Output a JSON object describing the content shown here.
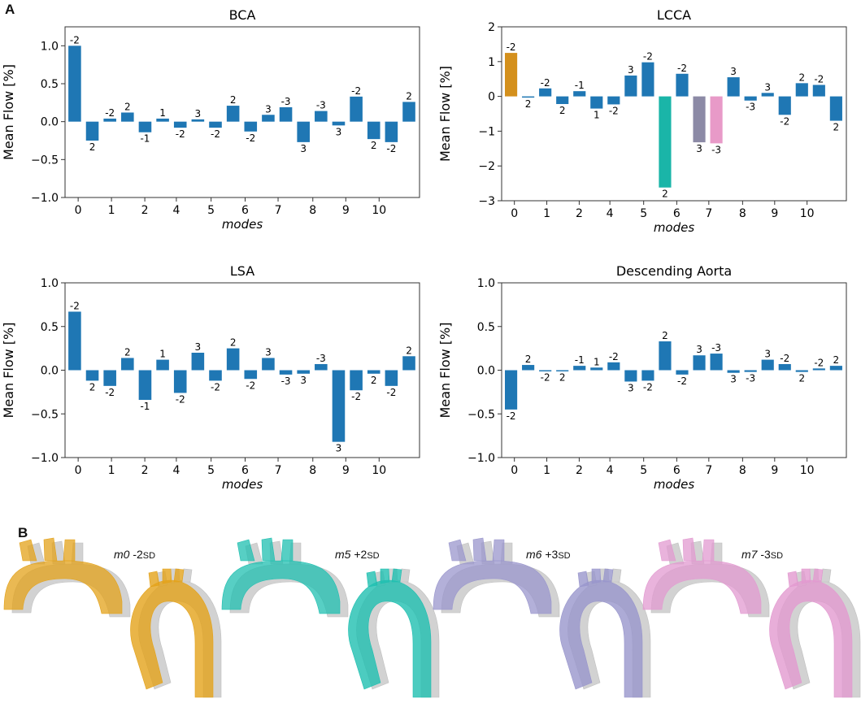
{
  "panel_a_letter": "A",
  "panel_b_letter": "B",
  "chart_data": [
    {
      "type": "bar",
      "title": "BCA",
      "xlabel": "modes",
      "ylabel": "Mean Flow [%]",
      "ylim": [
        -1.0,
        1.25
      ],
      "yticks": [
        -1.0,
        -0.5,
        0.0,
        0.5,
        1.0
      ],
      "ytick_labels": [
        "−1.0",
        "−0.5",
        "0.0",
        "0.5",
        "1.0"
      ],
      "xticks": [
        "0",
        "1",
        "2",
        "4",
        "5",
        "6",
        "7",
        "8",
        "9",
        "10"
      ],
      "values": [
        1.0,
        -0.25,
        0.04,
        0.12,
        -0.14,
        0.04,
        -0.08,
        0.03,
        -0.08,
        0.21,
        -0.13,
        0.09,
        0.19,
        -0.27,
        0.14,
        -0.05,
        0.33,
        -0.23,
        -0.27,
        0.26
      ],
      "labels": [
        "-2",
        "2",
        "-2",
        "2",
        "-1",
        "1",
        "-2",
        "3",
        "-2",
        "2",
        "-2",
        "3",
        "-3",
        "3",
        "-3",
        "3",
        "-2",
        "2",
        "-2",
        "2"
      ],
      "colors": [
        "#1f77b4"
      ]
    },
    {
      "type": "bar",
      "title": "LCCA",
      "xlabel": "modes",
      "ylabel": "Mean Flow [%]",
      "ylim": [
        -3,
        2
      ],
      "yticks": [
        -3,
        -2,
        -1,
        0,
        1,
        2
      ],
      "ytick_labels": [
        "−3",
        "−2",
        "−1",
        "0",
        "1",
        "2"
      ],
      "xticks": [
        "0",
        "1",
        "2",
        "4",
        "5",
        "6",
        "7",
        "8",
        "9",
        "10"
      ],
      "values": [
        1.25,
        -0.03,
        0.23,
        -0.22,
        0.15,
        -0.35,
        -0.23,
        0.6,
        0.98,
        -2.62,
        0.65,
        -1.32,
        -1.35,
        0.55,
        -0.12,
        0.1,
        -0.53,
        0.38,
        0.33,
        -0.7
      ],
      "labels": [
        "-2",
        "2",
        "-2",
        "2",
        "-1",
        "1",
        "-2",
        "3",
        "-2",
        "2",
        "-2",
        "3",
        "-3",
        "3",
        "-3",
        "3",
        "-2",
        "2",
        "-2",
        "2"
      ],
      "highlight": [
        {
          "index": 0,
          "color": "#d4901c"
        },
        {
          "index": 9,
          "color": "#1ab5a8"
        },
        {
          "index": 11,
          "color": "#8c8aa6"
        },
        {
          "index": 12,
          "color": "#e89ac8"
        }
      ],
      "colors": [
        "#1f77b4"
      ]
    },
    {
      "type": "bar",
      "title": "LSA",
      "xlabel": "modes",
      "ylabel": "Mean Flow [%]",
      "ylim": [
        -1.0,
        1.0
      ],
      "yticks": [
        -1.0,
        -0.5,
        0.0,
        0.5,
        1.0
      ],
      "ytick_labels": [
        "−1.0",
        "−0.5",
        "0.0",
        "0.5",
        "1.0"
      ],
      "xticks": [
        "0",
        "1",
        "2",
        "4",
        "5",
        "6",
        "7",
        "8",
        "9",
        "10"
      ],
      "values": [
        0.67,
        -0.12,
        -0.18,
        0.14,
        -0.34,
        0.12,
        -0.26,
        0.2,
        -0.12,
        0.25,
        -0.1,
        0.14,
        -0.05,
        -0.04,
        0.07,
        -0.82,
        -0.23,
        -0.04,
        -0.18,
        0.16
      ],
      "labels": [
        "-2",
        "2",
        "-2",
        "2",
        "-1",
        "1",
        "-2",
        "3",
        "-2",
        "2",
        "-2",
        "3",
        "-3",
        "3",
        "-3",
        "3",
        "-2",
        "2",
        "-2",
        "2"
      ],
      "colors": [
        "#1f77b4"
      ]
    },
    {
      "type": "bar",
      "title": "Descending Aorta",
      "xlabel": "modes",
      "ylabel": "Mean Flow [%]",
      "ylim": [
        -1.0,
        1.0
      ],
      "yticks": [
        -1.0,
        -0.5,
        0.0,
        0.5,
        1.0
      ],
      "ytick_labels": [
        "−1.0",
        "−0.5",
        "0.0",
        "0.5",
        "1.0"
      ],
      "xticks": [
        "0",
        "1",
        "2",
        "4",
        "5",
        "6",
        "7",
        "8",
        "9",
        "10"
      ],
      "values": [
        -0.45,
        0.06,
        -0.01,
        -0.01,
        0.05,
        0.03,
        0.09,
        -0.13,
        -0.12,
        0.33,
        -0.05,
        0.17,
        0.19,
        -0.03,
        -0.02,
        0.12,
        0.07,
        -0.02,
        0.02,
        0.05
      ],
      "labels": [
        "-2",
        "2",
        "-2",
        "2",
        "-1",
        "1",
        "-2",
        "3",
        "-2",
        "2",
        "-2",
        "3",
        "-3",
        "3",
        "-3",
        "3",
        "-2",
        "2",
        "-2",
        "2"
      ],
      "colors": [
        "#1f77b4"
      ]
    }
  ],
  "shapes": [
    {
      "mode": "m0",
      "sd_value": "-2",
      "sd_unit": "SD",
      "color": "#e3a21a"
    },
    {
      "mode": "m5",
      "sd_value": "+2",
      "sd_unit": "SD",
      "color": "#1fbfb0"
    },
    {
      "mode": "m6",
      "sd_value": "+3",
      "sd_unit": "SD",
      "color": "#9996cc"
    },
    {
      "mode": "m7",
      "sd_value": "-3",
      "sd_unit": "SD",
      "color": "#e29ad0"
    }
  ],
  "shape_mean_color": "#c8c8c8"
}
